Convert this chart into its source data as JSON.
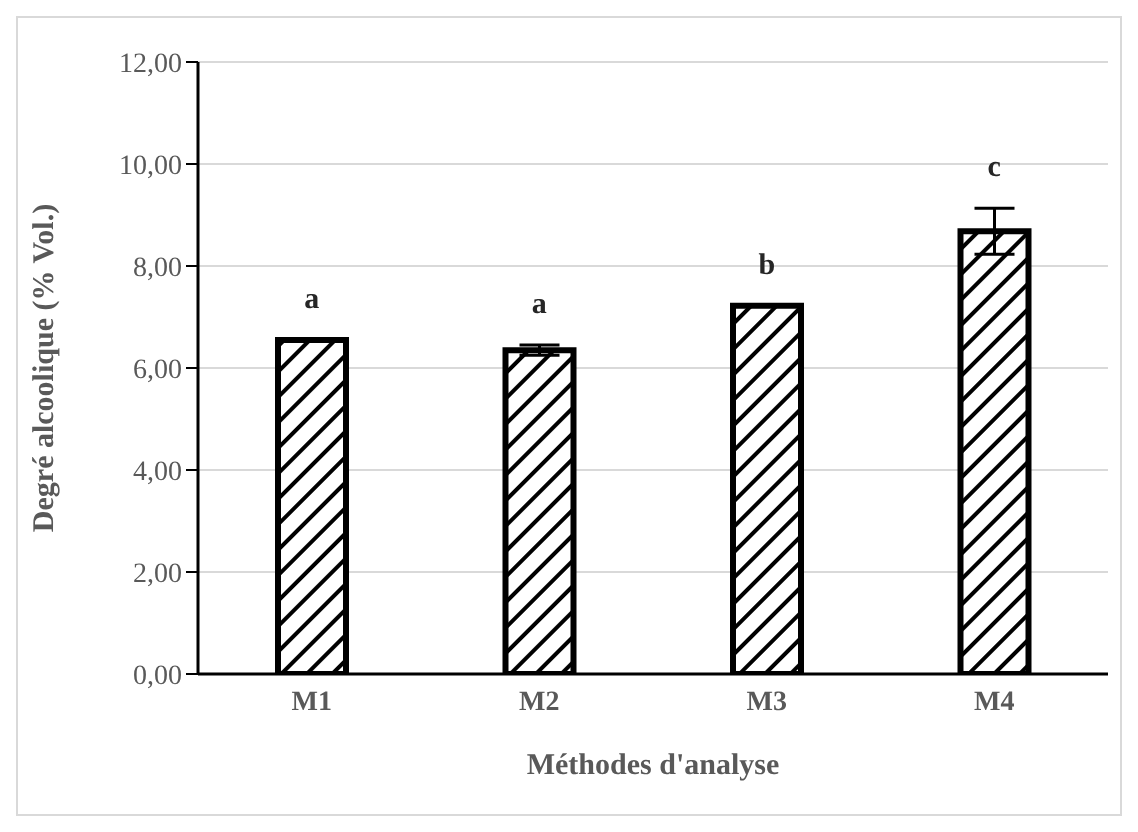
{
  "chart_data": {
    "type": "bar",
    "xlabel": "Méthodes d'analyse",
    "ylabel": "Degré alcoolique (% Vol.)",
    "categories": [
      "M1",
      "M2",
      "M3",
      "M4"
    ],
    "values": [
      6.55,
      6.35,
      7.22,
      8.68
    ],
    "errors": [
      null,
      0.1,
      null,
      0.45
    ],
    "color": "#000000",
    "ylim": [
      0,
      12
    ],
    "yticks": [
      {
        "value": 0,
        "label": "0,00"
      },
      {
        "value": 2,
        "label": "2,00"
      },
      {
        "value": 4,
        "label": "4,00"
      },
      {
        "value": 6,
        "label": "6,00"
      },
      {
        "value": 8,
        "label": "8,00"
      },
      {
        "value": 10,
        "label": "10,00"
      },
      {
        "value": 12,
        "label": "12,00"
      }
    ],
    "grid": "y",
    "annotations": [
      "a",
      "a",
      "b",
      "c"
    ]
  }
}
